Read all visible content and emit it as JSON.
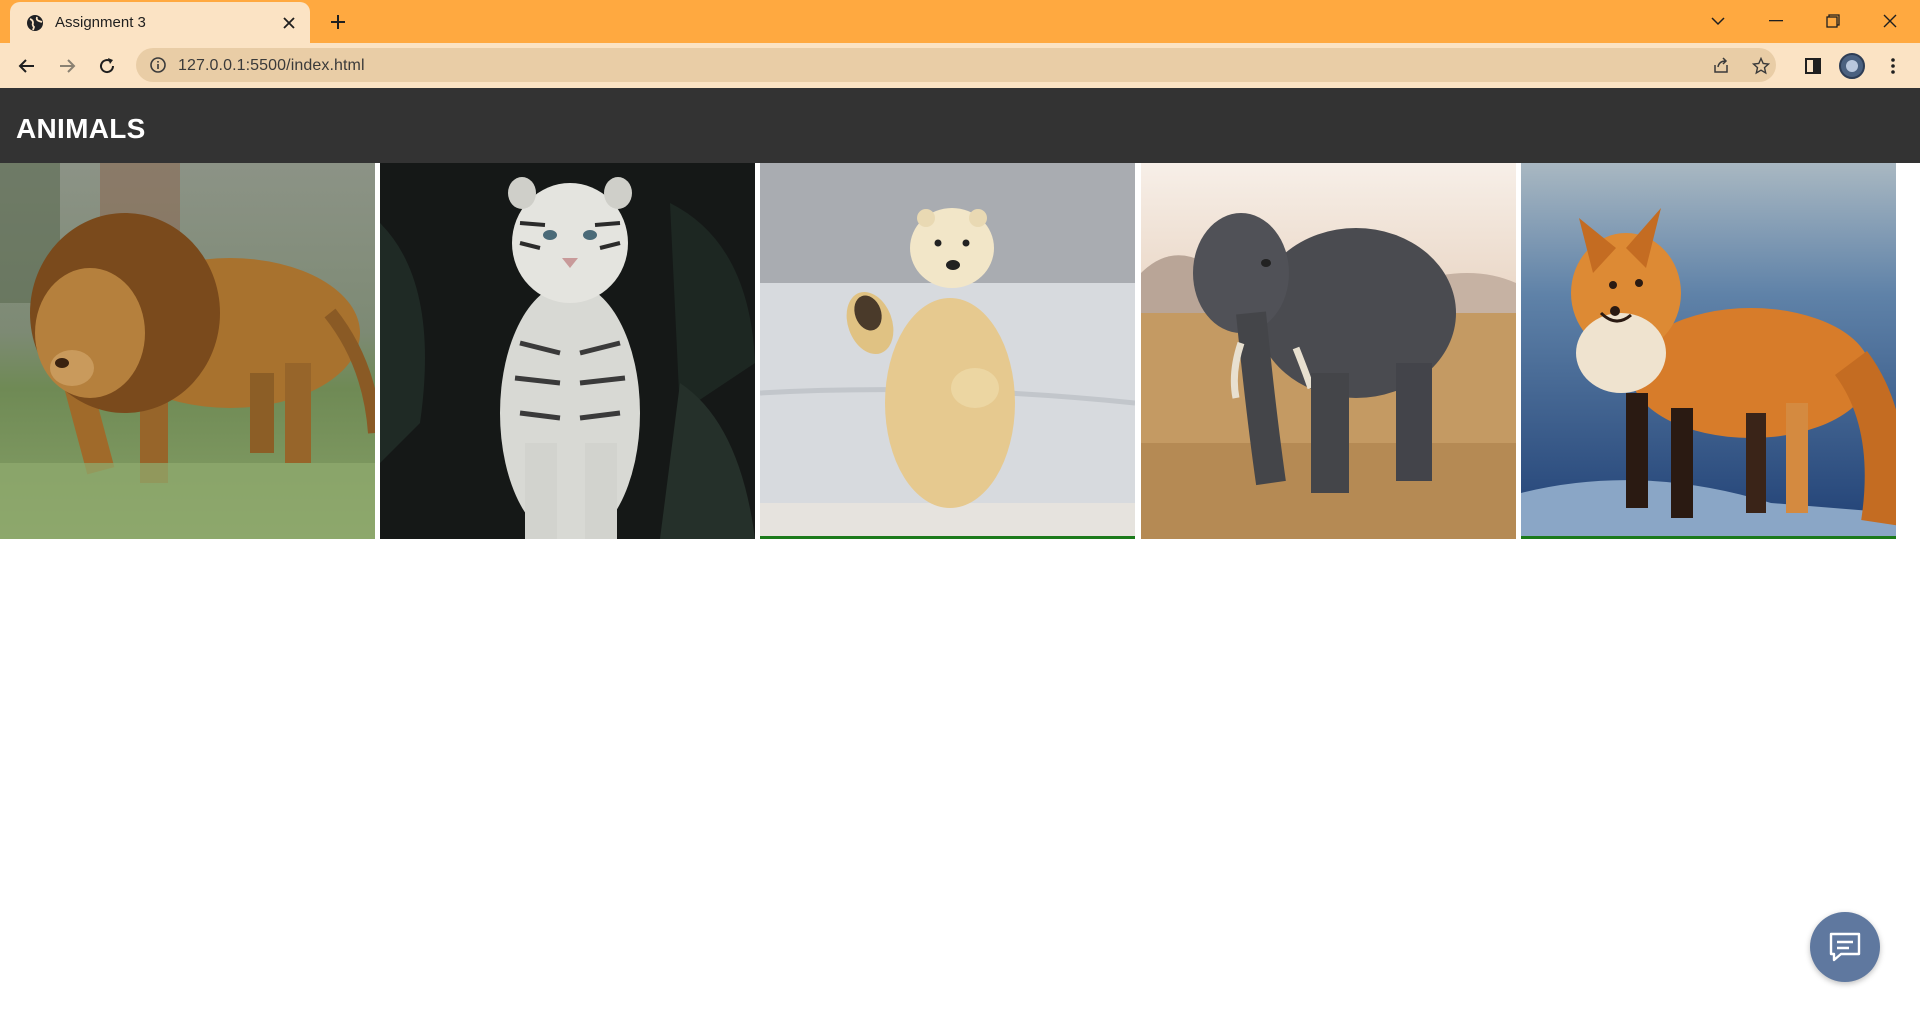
{
  "browser": {
    "tab_title": "Assignment 3",
    "url": "127.0.0.1:5500/index.html",
    "accent_color": "#ffa940",
    "toolbar_color": "#fbe3c4"
  },
  "page": {
    "title": "ANIMALS",
    "header_color": "#333333",
    "animals": [
      {
        "name": "lion",
        "icon": "lion-image"
      },
      {
        "name": "white tiger",
        "icon": "white-tiger-image"
      },
      {
        "name": "polar bear",
        "icon": "polar-bear-image"
      },
      {
        "name": "elephant",
        "icon": "elephant-image"
      },
      {
        "name": "red fox",
        "icon": "red-fox-image"
      }
    ]
  },
  "chat_button": {
    "icon": "chat-icon",
    "color": "#5f789f"
  }
}
